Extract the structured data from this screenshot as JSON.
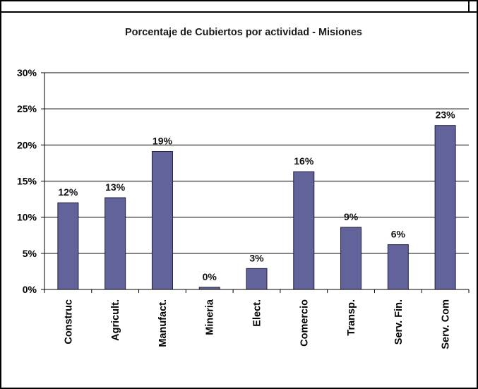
{
  "chart_data": {
    "type": "bar",
    "title": "Porcentaje de Cubiertos por actividad - Misiones",
    "categories": [
      "Construc",
      "Agricult.",
      "Manufact.",
      "Mineria",
      "Elect.",
      "Comercio",
      "Transp.",
      "Serv. Fin.",
      "Serv. Com"
    ],
    "values": [
      12,
      12.7,
      19.1,
      0.3,
      2.9,
      16.3,
      8.6,
      6.2,
      22.7
    ],
    "data_labels": [
      "12%",
      "13%",
      "19%",
      "0%",
      "3%",
      "16%",
      "9%",
      "6%",
      "23%"
    ],
    "ylim": [
      0,
      30
    ],
    "y_ticks": [
      0,
      5,
      10,
      15,
      20,
      25,
      30
    ],
    "y_tick_labels": [
      "0%",
      "5%",
      "10%",
      "15%",
      "20%",
      "25%",
      "30%"
    ],
    "grid": true,
    "legend": "none",
    "colors": {
      "bar": "#62639b",
      "bar_stroke": "#1e1e3c",
      "grid": "#000000",
      "frame": "#000000"
    }
  }
}
